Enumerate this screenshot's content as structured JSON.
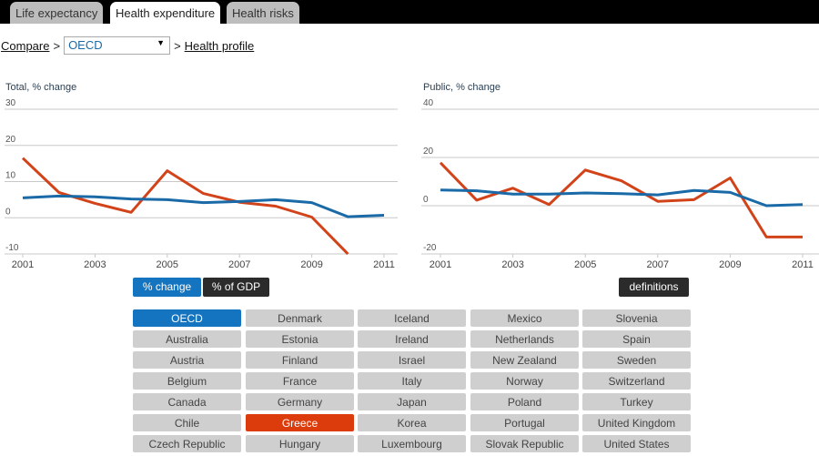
{
  "tabs": [
    {
      "label": "Life expectancy"
    },
    {
      "label": "Health expenditure"
    },
    {
      "label": "Health risks"
    }
  ],
  "active_tab": "Health expenditure",
  "breadcrumb": {
    "compare": "Compare",
    "sep1": ">",
    "selected": "OECD",
    "sep2": ">",
    "profile": "Health profile"
  },
  "colors": {
    "oecd": "#1a6aa8",
    "greece": "#d2431a",
    "btn_active": "#1474bf",
    "btn_dark": "#2b2b2b"
  },
  "chart_data": [
    {
      "type": "line",
      "title": "Total, % change",
      "ylim": [
        -10,
        30
      ],
      "yticks": [
        "30",
        "20",
        "10",
        "0",
        "-10"
      ],
      "ytick_values": [
        30,
        20,
        10,
        0,
        -10
      ],
      "x": [
        2001,
        2002,
        2003,
        2004,
        2005,
        2006,
        2007,
        2008,
        2009,
        2010,
        2011
      ],
      "xticks": [
        "2001",
        "2003",
        "2005",
        "2007",
        "2009",
        "2011"
      ],
      "grid": true,
      "series": [
        {
          "name": "OECD",
          "color": "#1a6aa8",
          "values": [
            5.5,
            6,
            5.8,
            5.2,
            5,
            4.2,
            4.5,
            5,
            4.2,
            0.3,
            0.7
          ]
        },
        {
          "name": "Greece",
          "color": "#d2431a",
          "values": [
            16.5,
            7,
            4,
            1.5,
            13,
            6.7,
            4.3,
            3.2,
            0.2,
            -10,
            null
          ]
        }
      ]
    },
    {
      "type": "line",
      "title": "Public, % change",
      "ylim": [
        -20,
        40
      ],
      "yticks": [
        "40",
        "20",
        "0",
        "-20"
      ],
      "ytick_values": [
        40,
        20,
        0,
        -20
      ],
      "x": [
        2001,
        2002,
        2003,
        2004,
        2005,
        2006,
        2007,
        2008,
        2009,
        2010,
        2011
      ],
      "xticks": [
        "2001",
        "2003",
        "2005",
        "2007",
        "2009",
        "2011"
      ],
      "grid": true,
      "series": [
        {
          "name": "OECD",
          "color": "#1a6aa8",
          "values": [
            6.5,
            6.2,
            4.8,
            4.8,
            5.3,
            5,
            4.5,
            6.3,
            5.5,
            0,
            0.5
          ]
        },
        {
          "name": "Greece",
          "color": "#d2431a",
          "values": [
            17.8,
            2.3,
            7.3,
            0.5,
            14.8,
            10.3,
            1.8,
            2.5,
            11.5,
            -13,
            -13
          ]
        }
      ]
    }
  ],
  "buttons": {
    "pct_change": "% change",
    "pct_gdp": "% of GDP",
    "definitions": "definitions"
  },
  "countries": [
    [
      "OECD",
      "Australia",
      "Austria",
      "Belgium",
      "Canada",
      "Chile",
      "Czech Republic"
    ],
    [
      "Denmark",
      "Estonia",
      "Finland",
      "France",
      "Germany",
      "Greece",
      "Hungary"
    ],
    [
      "Iceland",
      "Ireland",
      "Israel",
      "Italy",
      "Japan",
      "Korea",
      "Luxembourg"
    ],
    [
      "Mexico",
      "Netherlands",
      "New Zealand",
      "Norway",
      "Poland",
      "Portugal",
      "Slovak Republic"
    ],
    [
      "Slovenia",
      "Spain",
      "Sweden",
      "Switzerland",
      "Turkey",
      "United Kingdom",
      "United States"
    ]
  ],
  "selected_countries": {
    "primary": "OECD",
    "compare": "Greece"
  }
}
